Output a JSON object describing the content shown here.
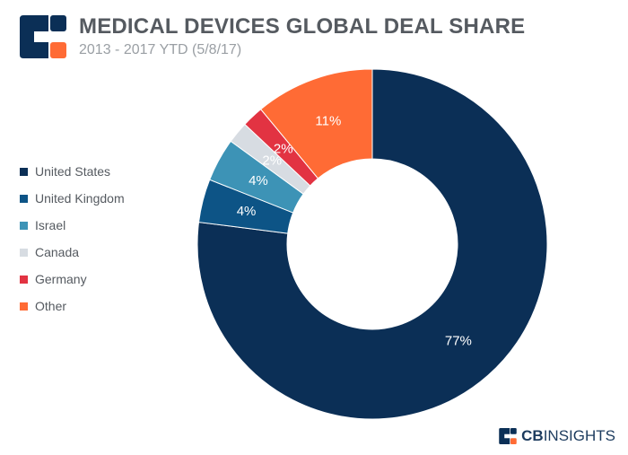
{
  "header": {
    "title": "MEDICAL DEVICES GLOBAL DEAL SHARE",
    "subtitle": "2013 - 2017 YTD (5/8/17)"
  },
  "brand": {
    "cb": "CB",
    "insights": "INSIGHTS"
  },
  "colors": {
    "logo_navy": "#0b2f56",
    "logo_orange": "#ff6b35"
  },
  "chart_data": {
    "type": "pie",
    "donut": true,
    "legend_position": "left",
    "slices": [
      {
        "name": "United States",
        "value": 77,
        "label": "77%",
        "color": "#0b2f56"
      },
      {
        "name": "United Kingdom",
        "value": 4,
        "label": "4%",
        "color": "#0d5486"
      },
      {
        "name": "Israel",
        "value": 4,
        "label": "4%",
        "color": "#3d93b6"
      },
      {
        "name": "Canada",
        "value": 2,
        "label": "2%",
        "color": "#d7dce2"
      },
      {
        "name": "Germany",
        "value": 2,
        "label": "2%",
        "color": "#e23342"
      },
      {
        "name": "Other",
        "value": 11,
        "label": "11%",
        "color": "#ff6b35"
      }
    ]
  }
}
